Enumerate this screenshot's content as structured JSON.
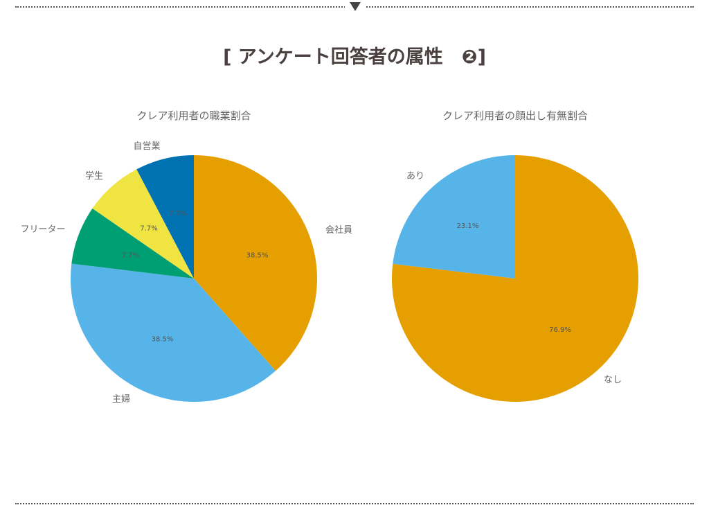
{
  "heading": "[ アンケート回答者の属性　❷]",
  "chart_data": [
    {
      "type": "pie",
      "title": "クレア利用者の職業割合",
      "categories": [
        "会社員",
        "主婦",
        "フリーター",
        "学生",
        "自営業"
      ],
      "values": [
        38.5,
        38.5,
        7.7,
        7.7,
        7.7
      ],
      "labels": [
        "38.5%",
        "38.5%",
        "7.7%",
        "7.7%",
        "7.7%"
      ],
      "colors": [
        "#E69F00",
        "#56B4E9",
        "#009E73",
        "#F0E442",
        "#0072B2"
      ],
      "start": "top",
      "direction": "clockwise"
    },
    {
      "type": "pie",
      "title": "クレア利用者の顔出し有無割合",
      "categories": [
        "なし",
        "あり"
      ],
      "values": [
        76.9,
        23.1
      ],
      "labels": [
        "76.9%",
        "23.1%"
      ],
      "colors": [
        "#E69F00",
        "#56B4E9"
      ],
      "start": "top",
      "direction": "clockwise"
    }
  ]
}
